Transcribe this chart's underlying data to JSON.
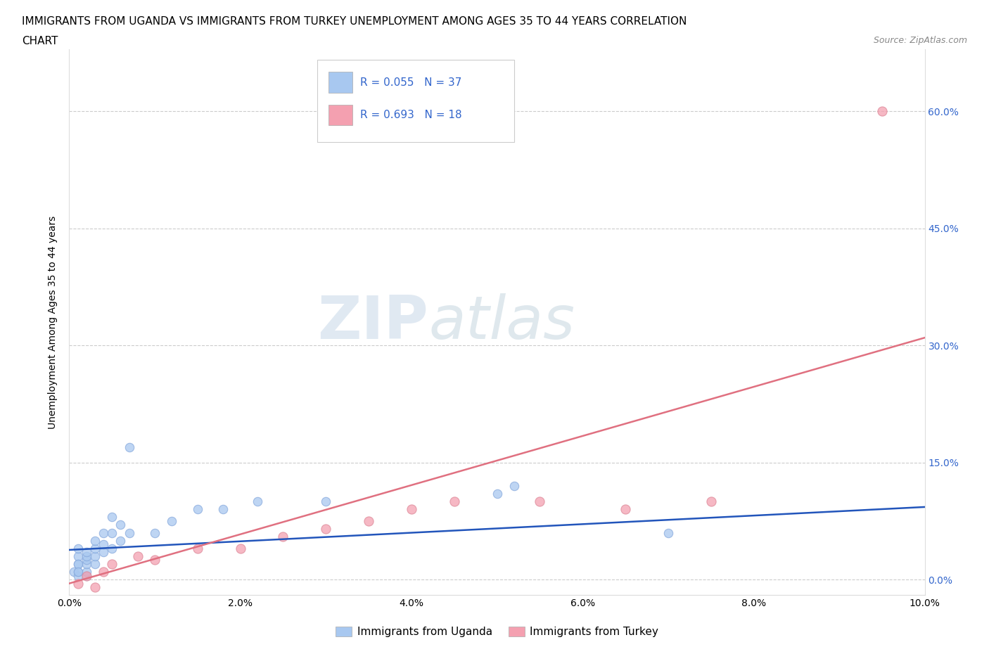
{
  "title_line1": "IMMIGRANTS FROM UGANDA VS IMMIGRANTS FROM TURKEY UNEMPLOYMENT AMONG AGES 35 TO 44 YEARS CORRELATION",
  "title_line2": "CHART",
  "source": "Source: ZipAtlas.com",
  "ylabel": "Unemployment Among Ages 35 to 44 years",
  "xlim": [
    0.0,
    0.1
  ],
  "ylim": [
    -0.02,
    0.68
  ],
  "xtick_values": [
    0.0,
    0.02,
    0.04,
    0.06,
    0.08,
    0.1
  ],
  "xtick_labels": [
    "0.0%",
    "2.0%",
    "4.0%",
    "6.0%",
    "8.0%",
    "10.0%"
  ],
  "ytick_values": [
    0.0,
    0.15,
    0.3,
    0.45,
    0.6
  ],
  "ytick_right_labels": [
    "0.0%",
    "15.0%",
    "30.0%",
    "45.0%",
    "60.0%"
  ],
  "legend_label_uganda": "Immigrants from Uganda",
  "legend_label_turkey": "Immigrants from Turkey",
  "uganda_color": "#a8c8f0",
  "turkey_color": "#f4a0b0",
  "uganda_line_color": "#2255bb",
  "turkey_line_color": "#e07080",
  "watermark_zip": "ZIP",
  "watermark_atlas": "atlas",
  "background_color": "#ffffff",
  "grid_color": "#cccccc",
  "tick_label_color": "#3366cc",
  "uganda_x": [
    0.0005,
    0.001,
    0.001,
    0.001,
    0.001,
    0.001,
    0.001,
    0.001,
    0.002,
    0.002,
    0.002,
    0.002,
    0.002,
    0.002,
    0.003,
    0.003,
    0.003,
    0.003,
    0.004,
    0.004,
    0.004,
    0.005,
    0.005,
    0.005,
    0.006,
    0.006,
    0.007,
    0.007,
    0.01,
    0.012,
    0.015,
    0.018,
    0.022,
    0.03,
    0.05,
    0.052,
    0.07
  ],
  "uganda_y": [
    0.01,
    0.005,
    0.01,
    0.02,
    0.03,
    0.04,
    0.02,
    0.01,
    0.005,
    0.01,
    0.02,
    0.025,
    0.03,
    0.035,
    0.02,
    0.03,
    0.04,
    0.05,
    0.035,
    0.045,
    0.06,
    0.04,
    0.06,
    0.08,
    0.05,
    0.07,
    0.06,
    0.17,
    0.06,
    0.075,
    0.09,
    0.09,
    0.1,
    0.1,
    0.11,
    0.12,
    0.06
  ],
  "turkey_x": [
    0.001,
    0.002,
    0.003,
    0.004,
    0.005,
    0.008,
    0.01,
    0.015,
    0.02,
    0.025,
    0.03,
    0.035,
    0.04,
    0.045,
    0.055,
    0.065,
    0.075,
    0.095
  ],
  "turkey_y": [
    -0.005,
    0.005,
    -0.01,
    0.01,
    0.02,
    0.03,
    0.025,
    0.04,
    0.04,
    0.055,
    0.065,
    0.075,
    0.09,
    0.1,
    0.1,
    0.09,
    0.1,
    0.6
  ],
  "uganda_trend_slope": 0.55,
  "uganda_trend_intercept": 0.038,
  "turkey_trend_slope": 3.15,
  "turkey_trend_intercept": -0.005
}
